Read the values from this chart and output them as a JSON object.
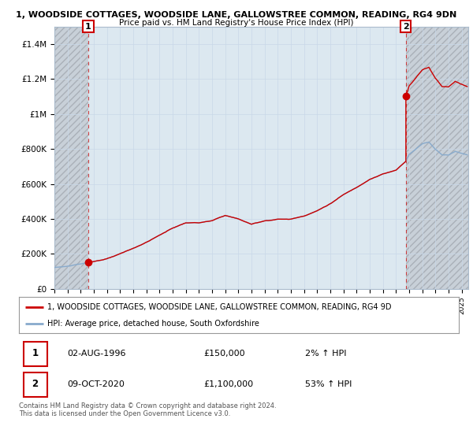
{
  "title1": "1, WOODSIDE COTTAGES, WOODSIDE LANE, GALLOWSTREE COMMON, READING, RG4 9DN",
  "title2": "Price paid vs. HM Land Registry's House Price Index (HPI)",
  "ylim": [
    0,
    1500000
  ],
  "yticks": [
    0,
    200000,
    400000,
    600000,
    800000,
    1000000,
    1200000,
    1400000
  ],
  "ytick_labels": [
    "£0",
    "£200K",
    "£400K",
    "£600K",
    "£800K",
    "£1M",
    "£1.2M",
    "£1.4M"
  ],
  "sale1_year": 1996.583,
  "sale1_price": 150000,
  "sale2_year": 2020.75,
  "sale2_price": 1100000,
  "legend_line1": "1, WOODSIDE COTTAGES, WOODSIDE LANE, GALLOWSTREE COMMON, READING, RG4 9D",
  "legend_line2": "HPI: Average price, detached house, South Oxfordshire",
  "table_row1_num": "1",
  "table_row1_date": "02-AUG-1996",
  "table_row1_price": "£150,000",
  "table_row1_hpi": "2% ↑ HPI",
  "table_row2_num": "2",
  "table_row2_date": "09-OCT-2020",
  "table_row2_price": "£1,100,000",
  "table_row2_hpi": "53% ↑ HPI",
  "footer": "Contains HM Land Registry data © Crown copyright and database right 2024.\nThis data is licensed under the Open Government Licence v3.0.",
  "sold_color": "#cc0000",
  "hpi_color": "#88aacc",
  "grid_color": "#c8d8e8",
  "background_plot": "#dce8f0",
  "background_main": "#ffffff",
  "xmin": 1994,
  "xmax": 2025.5
}
